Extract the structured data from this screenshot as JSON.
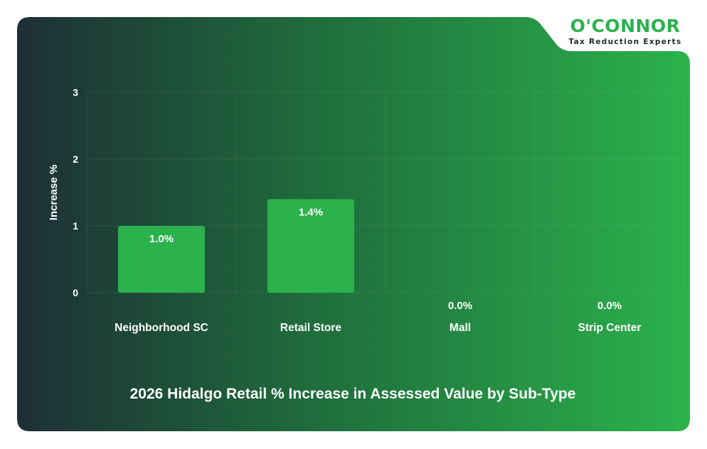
{
  "brand": {
    "name": "O'CONNOR",
    "tagline": "Tax Reduction Experts"
  },
  "colors": {
    "bar": "#2bb24c",
    "text": "#ffffff",
    "gradient_start": "#1e2f35",
    "gradient_end": "#2bb24c"
  },
  "chart_data": {
    "type": "bar",
    "title": "2026 Hidalgo Retail % Increase in Assessed Value by Sub-Type",
    "xlabel": "",
    "ylabel": "Increase %",
    "categories": [
      "Neighborhood SC",
      "Retail Store",
      "Mall",
      "Strip Center"
    ],
    "values": [
      1.0,
      1.4,
      0.0,
      0.0
    ],
    "value_labels": [
      "1.0%",
      "1.4%",
      "0.0%",
      "0.0%"
    ],
    "ylim": [
      0,
      3
    ],
    "yticks": [
      "0",
      "1",
      "2",
      "3"
    ],
    "grid": true,
    "legend": "none"
  }
}
